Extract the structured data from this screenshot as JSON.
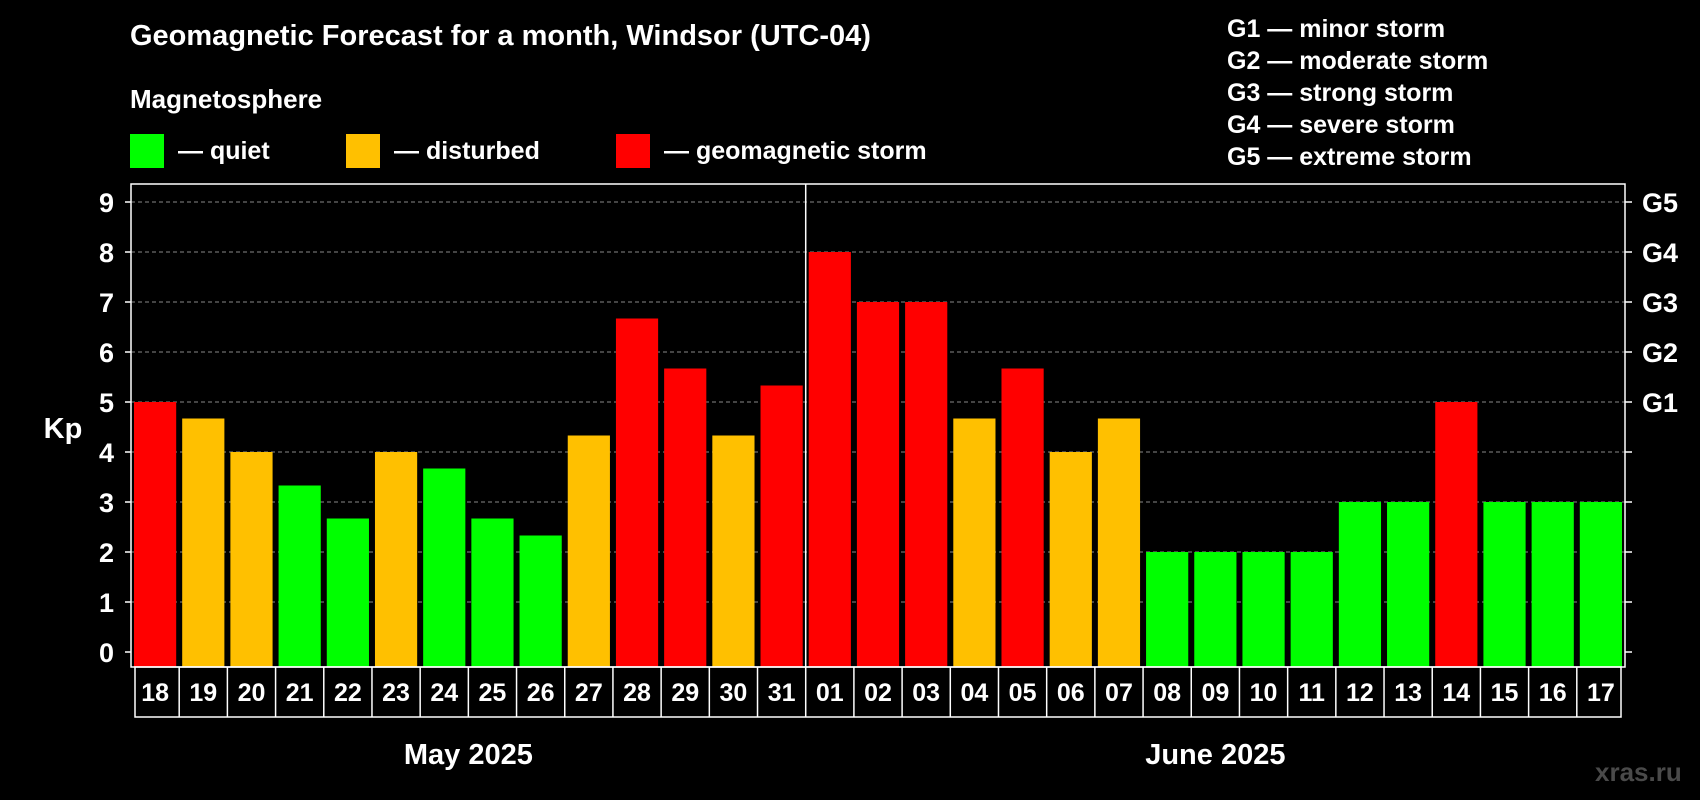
{
  "title": "Geomagnetic Forecast for a month, Windsor (UTC-04)",
  "legend": {
    "title": "Magnetosphere",
    "items": [
      {
        "label": "— quiet",
        "color": "#00ff00"
      },
      {
        "label": "— disturbed",
        "color": "#ffc000"
      },
      {
        "label": "— geomagnetic storm",
        "color": "#ff0000"
      }
    ]
  },
  "g_scale": [
    "G1 — minor storm",
    "G2 — moderate storm",
    "G3 — strong storm",
    "G4 — severe storm",
    "G5 — extreme storm"
  ],
  "watermark": "xras.ru",
  "chart_data": {
    "type": "bar",
    "ylabel": "Kp",
    "ylim": [
      0,
      9
    ],
    "yticks": [
      0,
      1,
      2,
      3,
      4,
      5,
      6,
      7,
      8,
      9
    ],
    "right_axis_labels": [
      {
        "value": 5,
        "label": "G1"
      },
      {
        "value": 6,
        "label": "G2"
      },
      {
        "value": 7,
        "label": "G3"
      },
      {
        "value": 8,
        "label": "G4"
      },
      {
        "value": 9,
        "label": "G5"
      }
    ],
    "grid": "dashed horizontal",
    "categories": [
      "18",
      "19",
      "20",
      "21",
      "22",
      "23",
      "24",
      "25",
      "26",
      "27",
      "28",
      "29",
      "30",
      "31",
      "01",
      "02",
      "03",
      "04",
      "05",
      "06",
      "07",
      "08",
      "09",
      "10",
      "11",
      "12",
      "13",
      "14",
      "15",
      "16",
      "17"
    ],
    "values": [
      5,
      4.67,
      4,
      3.33,
      2.67,
      4,
      3.67,
      2.67,
      2.33,
      4.33,
      6.67,
      5.67,
      4.33,
      5.33,
      8,
      7,
      7,
      4.67,
      5.67,
      4,
      4.67,
      2,
      2,
      2,
      2,
      3,
      3,
      5,
      3,
      3,
      3
    ],
    "levels": [
      "storm",
      "disturbed",
      "disturbed",
      "quiet",
      "quiet",
      "disturbed",
      "quiet",
      "quiet",
      "quiet",
      "disturbed",
      "storm",
      "storm",
      "disturbed",
      "storm",
      "storm",
      "storm",
      "storm",
      "disturbed",
      "storm",
      "disturbed",
      "disturbed",
      "quiet",
      "quiet",
      "quiet",
      "quiet",
      "quiet",
      "quiet",
      "storm",
      "quiet",
      "quiet",
      "quiet"
    ],
    "level_colors": {
      "quiet": "#00ff00",
      "disturbed": "#ffc000",
      "storm": "#ff0000"
    },
    "months": [
      {
        "label": "May 2025",
        "start_index": 0,
        "end_index": 13
      },
      {
        "label": "June 2025",
        "start_index": 14,
        "end_index": 30
      }
    ]
  }
}
